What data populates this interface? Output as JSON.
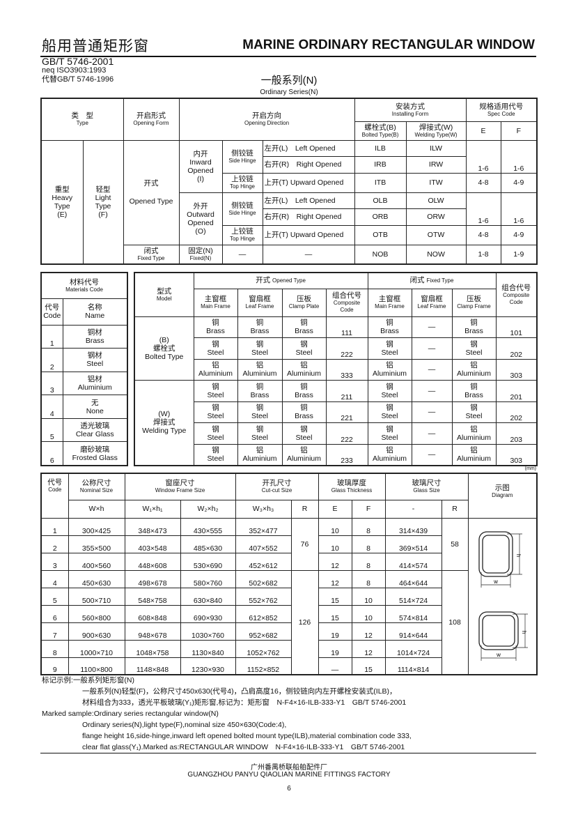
{
  "header": {
    "title_cn": "船用普通矩形窗",
    "title_en": "MARINE ORDINARY RECTANGULAR WINDOW",
    "std1": "GB/T 5746-2001",
    "std2": "neq ISO3903:1993",
    "std3": "代替GB/T 5746-1996"
  },
  "series": {
    "cn": "一般系列(N)",
    "en": "Ordinary Series(N)"
  },
  "t1": {
    "h_type_cn": "类　型",
    "h_type_en": "Type",
    "h_form_cn": "开启形式",
    "h_form_en": "Opening Form",
    "h_dir_cn": "开启方向",
    "h_dir_en": "Opening Direction",
    "h_install_cn": "安装方式",
    "h_install_en": "Installing Form",
    "h_spec_cn": "规格适用代号",
    "h_spec_en": "Spec Code",
    "h_bolt_cn": "螺栓式(B)",
    "h_bolt_en": "Bolted Type(B)",
    "h_weld_cn": "焊接式(W)",
    "h_weld_en": "Welding Type(W)",
    "h_e": "E",
    "h_f": "F",
    "heavy": [
      "重型",
      "Heavy",
      "Type",
      "(E)"
    ],
    "light": [
      "轻型",
      "Light",
      "Type",
      "(F)"
    ],
    "opened_cn": "开式",
    "opened_en": "Opened Type",
    "fixed_cn": "闭式",
    "fixed_en": "Fixed Type",
    "inward": [
      "内开",
      "Inward",
      "Opened",
      "(I)"
    ],
    "outward": [
      "外开",
      "Outward",
      "Opened",
      "(O)"
    ],
    "side_cn": "侧铰链",
    "side_en": "Side Hinge",
    "top_cn": "上铰链",
    "top_en": "Top Hinge",
    "fixedn_cn": "固定(N)",
    "fixedn_en": "Fixed(N)",
    "dash": "—",
    "left": "左开(L)　Left Opened",
    "right": "右开(R)　Right Opened",
    "up": "上开(T) Upward Opened",
    "codes": {
      "ILB": "ILB",
      "ILW": "ILW",
      "IRB": "IRB",
      "IRW": "IRW",
      "ITB": "ITB",
      "ITW": "ITW",
      "OLB": "OLB",
      "OLW": "OLW",
      "ORB": "ORB",
      "ORW": "ORW",
      "OTB": "OTB",
      "OTW": "OTW",
      "NOB": "NOB",
      "NOW": "NOW"
    },
    "spec": {
      "side_e": "1-6",
      "side_f": "1-6",
      "top_e": "4-8",
      "top_f": "4-9",
      "fix_e": "1-8",
      "fix_f": "1-9"
    }
  },
  "materials": {
    "title_cn": "材料代号",
    "title_en": "Materials Code",
    "code_cn": "代号",
    "code_en": "Code",
    "name_cn": "名称",
    "name_en": "Name",
    "rows": [
      [
        "1",
        "铜材",
        "Brass"
      ],
      [
        "2",
        "钢材",
        "Steel"
      ],
      [
        "3",
        "铝材",
        "Aluminium"
      ],
      [
        "4",
        "无",
        "None"
      ],
      [
        "5",
        "透光玻璃",
        "Clear Glass"
      ],
      [
        "6",
        "磨砂玻璃",
        "Frosted Glass"
      ]
    ]
  },
  "t2": {
    "model_cn": "型式",
    "model_en": "Model",
    "opened_cn": "开式",
    "opened_en": "Opened Type",
    "fixed_cn": "闭式",
    "fixed_en": "Fixed Type",
    "main_cn": "主窗框",
    "main_en": "Main Frame",
    "leaf_cn": "窗扇框",
    "leaf_en": "Leaf Frame",
    "clamp_cn": "压板",
    "clamp_en": "Clamp Plate",
    "clampf_en": "Clamp Frame",
    "comp_cn": "组合代号",
    "comp_en": "Composite Code",
    "bolted": [
      "(B)",
      "螺栓式",
      "Bolted Type"
    ],
    "welding": [
      "(W)",
      "焊接式",
      "Welding Type"
    ],
    "rows": [
      [
        [
          "铜",
          "Brass"
        ],
        [
          "铜",
          "Brass"
        ],
        [
          "铜",
          "Brass"
        ],
        "111",
        [
          "铜",
          "Brass"
        ],
        "—",
        [
          "铜",
          "Brass"
        ],
        "101"
      ],
      [
        [
          "钢",
          "Steel"
        ],
        [
          "钢",
          "Steel"
        ],
        [
          "钢",
          "Steel"
        ],
        "222",
        [
          "钢",
          "Steel"
        ],
        "—",
        [
          "钢",
          "Steel"
        ],
        "202"
      ],
      [
        [
          "铝",
          "Aluminium"
        ],
        [
          "铝",
          "Aluminium"
        ],
        [
          "铝",
          "Aluminium"
        ],
        "333",
        [
          "铝",
          "Aluminium"
        ],
        "—",
        [
          "铝",
          "Aluminium"
        ],
        "303"
      ],
      [
        [
          "钢",
          "Steel"
        ],
        [
          "铜",
          "Brass"
        ],
        [
          "铜",
          "Brass"
        ],
        "211",
        [
          "钢",
          "Steel"
        ],
        "—",
        [
          "铜",
          "Brass"
        ],
        "201"
      ],
      [
        [
          "钢",
          "Steel"
        ],
        [
          "钢",
          "Steel"
        ],
        [
          "铜",
          "Brass"
        ],
        "221",
        [
          "钢",
          "Steel"
        ],
        "—",
        [
          "钢",
          "Steel"
        ],
        "202"
      ],
      [
        [
          "钢",
          "Steel"
        ],
        [
          "钢",
          "Steel"
        ],
        [
          "钢",
          "Steel"
        ],
        "222",
        [
          "钢",
          "Steel"
        ],
        "—",
        [
          "铝",
          "Aluminium"
        ],
        "203"
      ],
      [
        [
          "钢",
          "Steel"
        ],
        [
          "铝",
          "Aluminium"
        ],
        [
          "铝",
          "Aluminium"
        ],
        "233",
        [
          "铝",
          "Aluminium"
        ],
        "—",
        [
          "铝",
          "Aluminium"
        ],
        "303"
      ]
    ]
  },
  "unit": "(mm)",
  "t3": {
    "code_cn": "代号",
    "code_en": "Code",
    "nom_cn": "公称尺寸",
    "nom_en": "Nominal Size",
    "frame_cn": "窗座尺寸",
    "frame_en": "Window Frame Size",
    "cut_cn": "开孔尺寸",
    "cut_en": "Cut-cut Size",
    "thick_cn": "玻璃厚度",
    "thick_en": "Glass Thickness",
    "gsize_cn": "玻璃尺寸",
    "gsize_en": "Glass Size",
    "diag_cn": "示图",
    "diag_en": "Diagram",
    "sub": [
      "W×h",
      "W₁×h₁",
      "W₂×h₂",
      "W₃×h₃",
      "R",
      "E",
      "F",
      "-",
      "R"
    ],
    "r_cut": [
      "76",
      "126"
    ],
    "r_glass": [
      "58",
      "108"
    ],
    "diag_w": "w",
    "diag_h": "h",
    "rows": [
      [
        "1",
        "300×425",
        "348×473",
        "430×555",
        "352×477",
        "10",
        "8",
        "314×439"
      ],
      [
        "2",
        "355×500",
        "403×548",
        "485×630",
        "407×552",
        "10",
        "8",
        "369×514"
      ],
      [
        "3",
        "400×560",
        "448×608",
        "530×690",
        "452×612",
        "12",
        "8",
        "414×574"
      ],
      [
        "4",
        "450×630",
        "498×678",
        "580×760",
        "502×682",
        "12",
        "8",
        "464×644"
      ],
      [
        "5",
        "500×710",
        "548×758",
        "630×840",
        "552×762",
        "15",
        "10",
        "514×724"
      ],
      [
        "6",
        "560×800",
        "608×848",
        "690×930",
        "612×852",
        "15",
        "10",
        "574×814"
      ],
      [
        "7",
        "900×630",
        "948×678",
        "1030×760",
        "952×682",
        "19",
        "12",
        "914×644"
      ],
      [
        "8",
        "1000×710",
        "1048×758",
        "1130×840",
        "1052×762",
        "19",
        "12",
        "1014×724"
      ],
      [
        "9",
        "1100×800",
        "1148×848",
        "1230×930",
        "1152×852",
        "—",
        "15",
        "1114×814"
      ]
    ]
  },
  "notes": [
    "标记示例:一般系列矩形窗(N)",
    "一般系列(N)轻型(F)，公称尺寸450x630(代号4)，凸肩高度16，侧铰链向内左开螺栓安装式(ILB)，",
    "材料组合为333，透光平板玻璃(Y₁)矩形窗,标记为：矩形窗　N-F4×16-ILB-333-Y1　GB/T 5746-2001",
    "Marked sample:Ordinary series rectangular window(N)",
    "Ordinary series(N),light type(F),nominal size 450×630(Code:4),",
    "flange height 16,side-hinge,inward left opened bolted mount type(ILB),material combination code 333,",
    "clear flat glass(Y₁).Marked as:RECTANGULAR WINDOW　N-F4×16-ILB-333-Y1　GB/T 5746-2001"
  ],
  "footer": {
    "cn": "广州番禺桥联船舶配件厂",
    "en": "GUANGZHOU PANYU QIAOLIAN MARINE FITTINGS FACTORY",
    "page": "6"
  }
}
